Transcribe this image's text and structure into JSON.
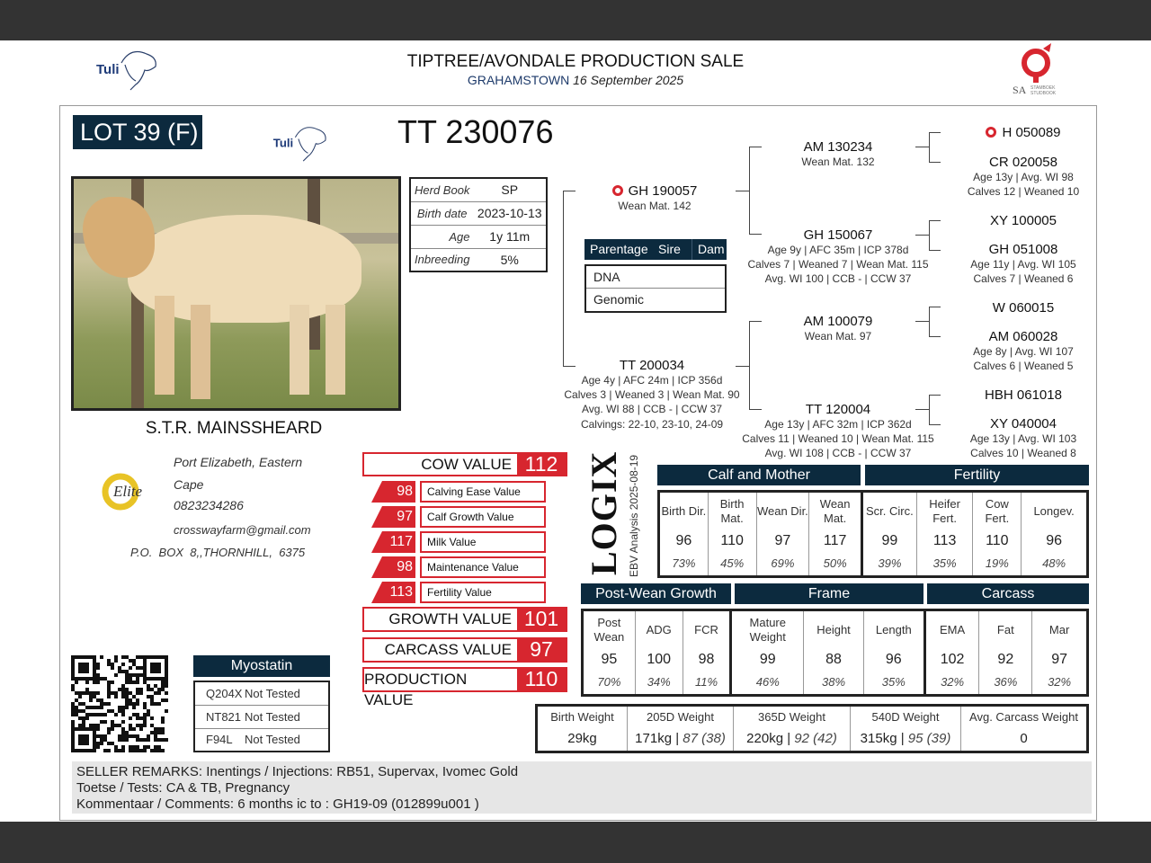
{
  "header": {
    "title": "TIPTREE/AVONDALE PRODUCTION SALE",
    "location": "GRAHAMSTOWN",
    "date": "16 September 2025",
    "left_logo": "Tuli",
    "right_logo": "SA Stamboek Studbook"
  },
  "lot": {
    "label": "LOT 39 (F)",
    "id": "TT 230076",
    "breed_logo": "Tuli"
  },
  "info": [
    {
      "k": "Herd Book",
      "v": "SP"
    },
    {
      "k": "Birth date",
      "v": "2023-10-13"
    },
    {
      "k": "Age",
      "v": "1y 11m"
    },
    {
      "k": "Inbreeding",
      "v": "5%"
    }
  ],
  "pedigree": {
    "sire": {
      "name": "GH 190057",
      "lines": [
        "Wean Mat. 142"
      ],
      "icon": "sa-gold-icon"
    },
    "dam": {
      "name": "TT 200034",
      "lines": [
        "Age 4y | AFC 24m | ICP 356d",
        "Calves 3 | Weaned 3 | Wean Mat. 90",
        "Avg. WI 88 | CCB - | CCW 37"
      ],
      "calvings": "Calvings: 22-10, 23-10, 24-09"
    },
    "ss": {
      "name": "AM 130234",
      "lines": [
        "Wean Mat. 132"
      ]
    },
    "sd": {
      "name": "GH 150067",
      "lines": [
        "Age 9y | AFC 35m | ICP 378d",
        "Calves 7 | Weaned 7 | Wean Mat. 115",
        "Avg. WI 100 | CCB - | CCW 37"
      ]
    },
    "ds": {
      "name": "AM 100079",
      "lines": [
        "Wean Mat. 97"
      ]
    },
    "dd": {
      "name": "TT 120004",
      "lines": [
        "Age 13y | AFC 32m | ICP 362d",
        "Calves 11 | Weaned 10 | Wean Mat. 115",
        "Avg. WI 108 | CCB - | CCW 37"
      ]
    },
    "sss": {
      "name": "H 050089",
      "lines": [],
      "icon": "sa-gold-icon"
    },
    "ssd": {
      "name": "CR 020058",
      "lines": [
        "Age 13y | Avg. WI 98",
        "Calves 12 | Weaned 10"
      ]
    },
    "sds": {
      "name": "XY 100005",
      "lines": []
    },
    "sdd": {
      "name": "GH 051008",
      "lines": [
        "Age 11y | Avg. WI 105",
        "Calves 7 | Weaned 6"
      ]
    },
    "dss": {
      "name": "W 060015",
      "lines": []
    },
    "dsd": {
      "name": "AM 060028",
      "lines": [
        "Age 8y | Avg. WI 107",
        "Calves 6 | Weaned 5"
      ]
    },
    "dds": {
      "name": "HBH 061018",
      "lines": []
    },
    "ddd": {
      "name": "XY 040004",
      "lines": [
        "Age 13y | Avg. WI 103",
        "Calves 10 | Weaned 8"
      ]
    }
  },
  "parentage": {
    "label": "Parentage",
    "sire": "Sire",
    "dam": "Dam",
    "rows": [
      "DNA",
      "Genomic"
    ]
  },
  "seller": {
    "name": "S.T.R. MAINSSHEARD",
    "address1": "Port Elizabeth, Eastern",
    "address2": "Cape",
    "phone": "0823234286",
    "email": "crosswayfarm@gmail.com",
    "po_box": "P.O.  BOX  8,,THORNHILL,  6375",
    "logo": "Elite"
  },
  "values": {
    "cow": {
      "label": "COW VALUE",
      "value": "112"
    },
    "subs": [
      {
        "v": "98",
        "l": "Calving Ease Value"
      },
      {
        "v": "97",
        "l": "Calf Growth Value"
      },
      {
        "v": "117",
        "l": "Milk Value"
      },
      {
        "v": "98",
        "l": "Maintenance Value"
      },
      {
        "v": "113",
        "l": "Fertility Value"
      }
    ],
    "growth": {
      "label": "GROWTH VALUE",
      "value": "101"
    },
    "carcass": {
      "label": "CARCASS VALUE",
      "value": "97"
    },
    "production": {
      "label": "PRODUCTION VALUE",
      "value": "110"
    }
  },
  "logix": {
    "logo": "LOGIX",
    "analysis": "EBV Analysis 2025-08-19"
  },
  "ebv1": {
    "groups": [
      "Calf and Mother",
      "Fertility"
    ],
    "cols": [
      {
        "l": "Birth Dir.",
        "v": "96",
        "p": "73%"
      },
      {
        "l": "Birth Mat.",
        "v": "110",
        "p": "45%"
      },
      {
        "l": "Wean Dir.",
        "v": "97",
        "p": "69%"
      },
      {
        "l": "Wean Mat.",
        "v": "117",
        "p": "50%"
      },
      {
        "l": "Scr. Circ.",
        "v": "99",
        "p": "39%"
      },
      {
        "l": "Heifer Fert.",
        "v": "113",
        "p": "35%"
      },
      {
        "l": "Cow Fert.",
        "v": "110",
        "p": "19%"
      },
      {
        "l": "Longev.",
        "v": "96",
        "p": "48%"
      }
    ]
  },
  "ebv2": {
    "groups": [
      "Post-Wean Growth",
      "Frame",
      "Carcass"
    ],
    "cols": [
      {
        "l": "Post Wean",
        "v": "95",
        "p": "70%"
      },
      {
        "l": "ADG",
        "v": "100",
        "p": "34%"
      },
      {
        "l": "FCR",
        "v": "98",
        "p": "11%"
      },
      {
        "l": "Mature Weight",
        "v": "99",
        "p": "46%"
      },
      {
        "l": "Height",
        "v": "88",
        "p": "38%"
      },
      {
        "l": "Length",
        "v": "96",
        "p": "35%"
      },
      {
        "l": "EMA",
        "v": "102",
        "p": "32%"
      },
      {
        "l": "Fat",
        "v": "92",
        "p": "36%"
      },
      {
        "l": "Mar",
        "v": "97",
        "p": "32%"
      }
    ]
  },
  "weights": [
    {
      "l": "Birth Weight",
      "v": "29kg",
      "e": ""
    },
    {
      "l": "205D Weight",
      "v": "171kg",
      "e": "87 (38)"
    },
    {
      "l": "365D Weight",
      "v": "220kg",
      "e": "92 (42)"
    },
    {
      "l": "540D Weight",
      "v": "315kg",
      "e": "95 (39)"
    },
    {
      "l": "Avg. Carcass Weight",
      "v": "0",
      "e": ""
    }
  ],
  "myostatin": {
    "title": "Myostatin",
    "rows": [
      {
        "k": "Q204X",
        "v": "Not Tested"
      },
      {
        "k": "NT821",
        "v": "Not Tested"
      },
      {
        "k": "F94L",
        "v": "Not Tested"
      }
    ]
  },
  "remarks": {
    "label": "SELLER REMARKS:",
    "line1": "Inentings / Injections: RB51, Supervax, Ivomec Gold",
    "line2": "Toetse / Tests: CA & TB, Pregnancy",
    "line3": "Kommentaar / Comments: 6 months ic to : GH19-09 (012899u001 )"
  },
  "colors": {
    "navy": "#0c2a3e",
    "red": "#d7262f",
    "bar": "#333333"
  }
}
